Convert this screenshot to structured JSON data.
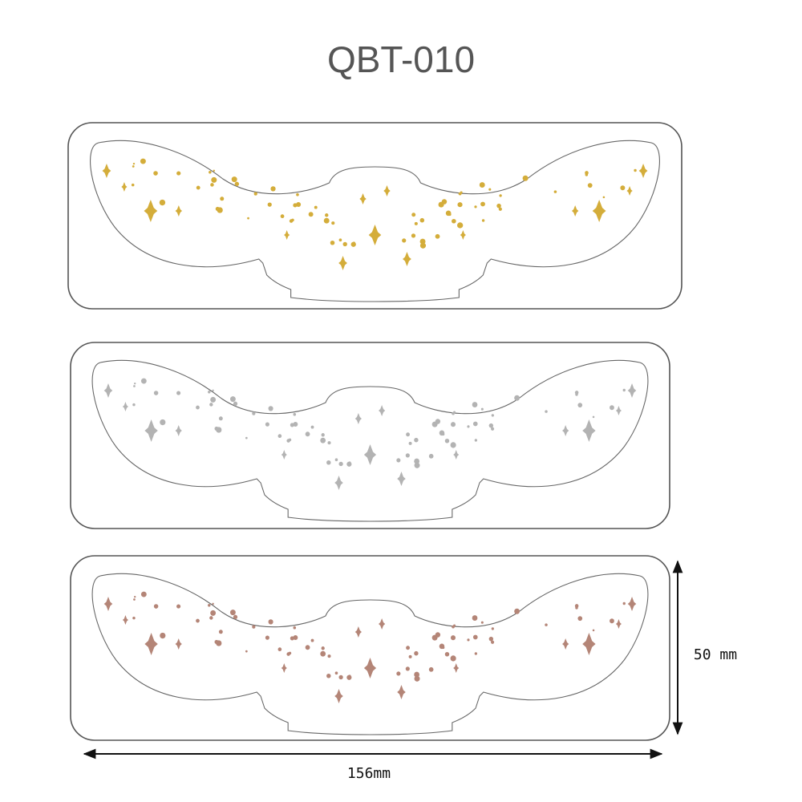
{
  "title": "QBT-010",
  "dimensions": {
    "height": "50 mm",
    "width": "156mm"
  }
}
